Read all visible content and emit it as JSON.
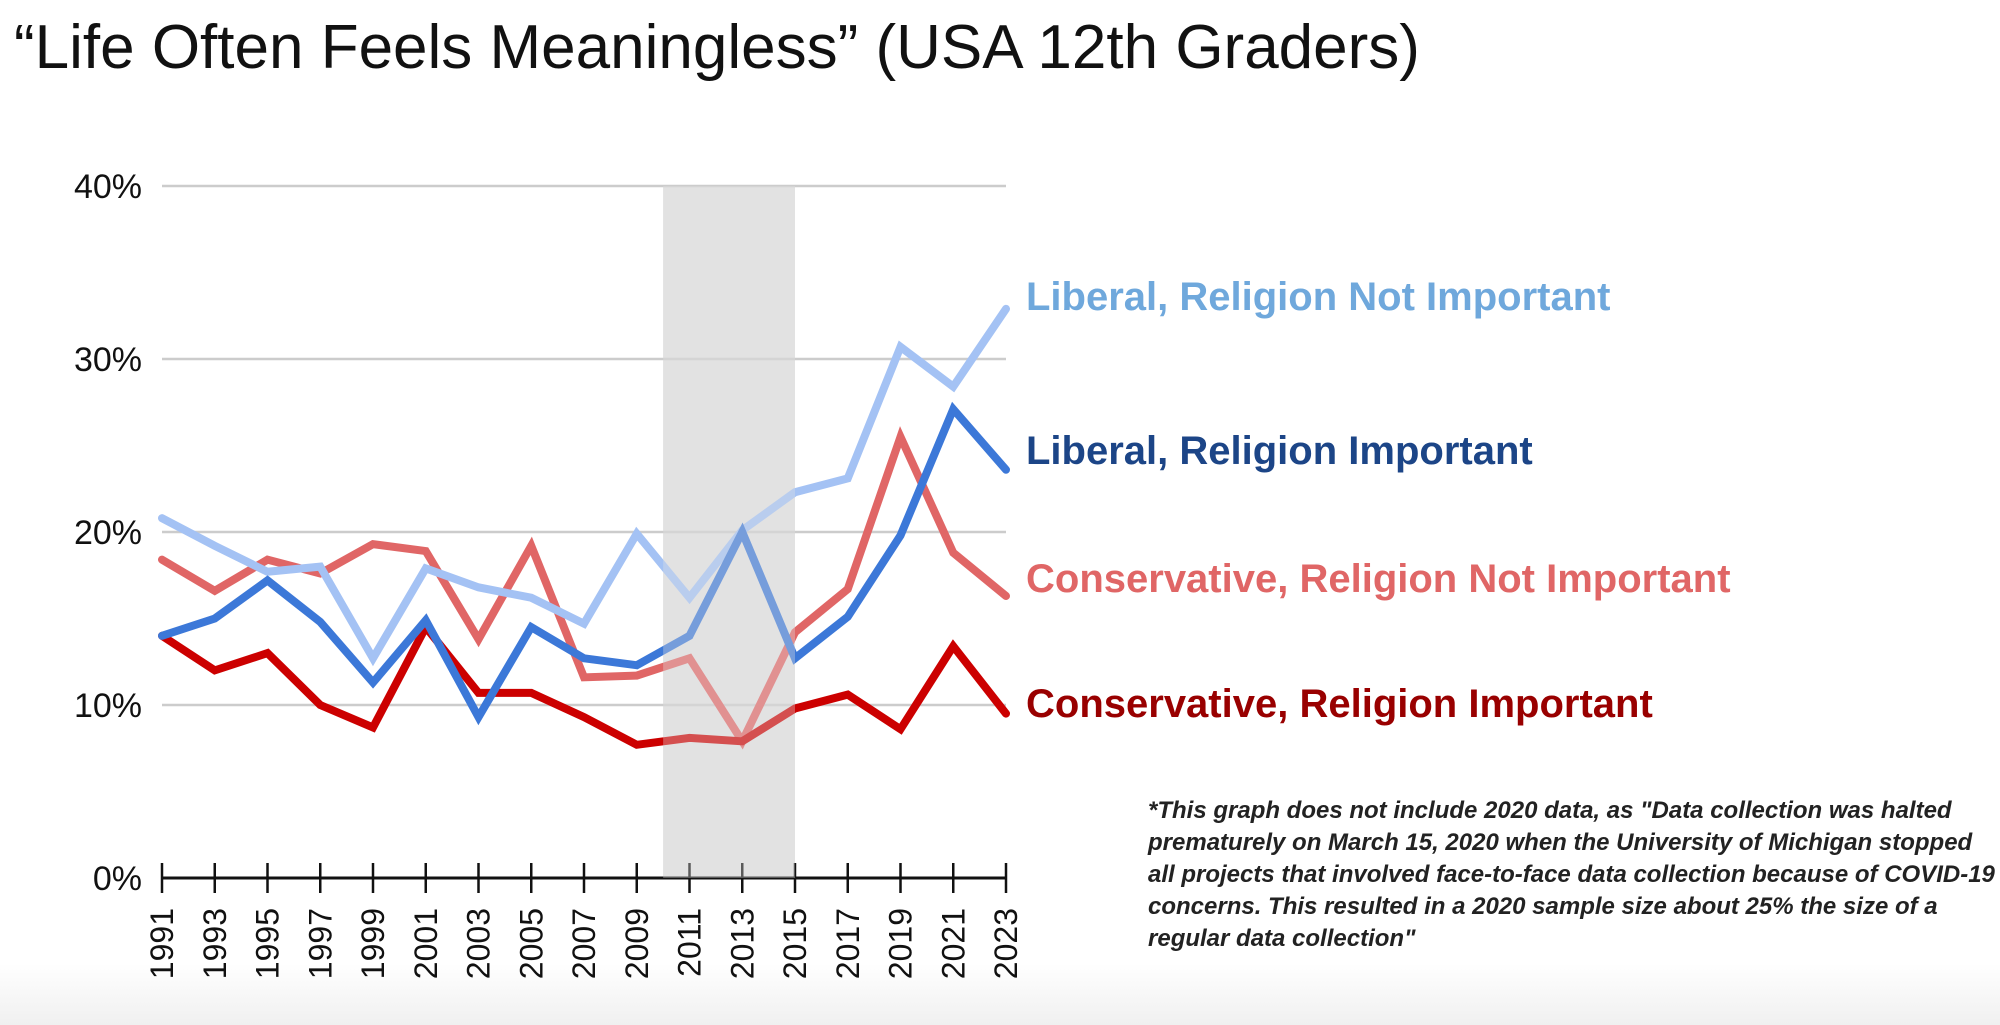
{
  "title": "“Life Often Feels Meaningless” (USA 12th Graders)",
  "footnote": "*This graph does not include 2020 data, as \"Data collection was halted prematurely on March 15, 2020 when the University of Michigan stopped all projects that involved face-to-face data collection because of COVID-19 concerns. This resulted in a 2020 sample size about 25% the size of a regular data collection\"",
  "chart_data": {
    "type": "line",
    "title": "“Life Often Feels Meaningless” (USA 12th Graders)",
    "xlabel": "",
    "ylabel": "",
    "x": [
      1991,
      1993,
      1995,
      1997,
      1999,
      2001,
      2003,
      2005,
      2007,
      2009,
      2011,
      2013,
      2015,
      2017,
      2019,
      2021,
      2023
    ],
    "x_tick_labels": [
      "1991",
      "1993",
      "1995",
      "1997",
      "1999",
      "2001",
      "2003",
      "2005",
      "2007",
      "2009",
      "2011",
      "2013",
      "2015",
      "2017",
      "2019",
      "2021",
      "2023"
    ],
    "ylim": [
      0,
      40
    ],
    "y_ticks": [
      0,
      10,
      20,
      30,
      40
    ],
    "y_tick_labels": [
      "0%",
      "10%",
      "20%",
      "30%",
      "40%"
    ],
    "grid": true,
    "legend": "direct labels at right end of lines",
    "shaded_region": {
      "x_start": 2010,
      "x_end": 2015,
      "color": "#e2e2e2"
    },
    "series": [
      {
        "name": "Liberal, Religion Not Important",
        "color": "#a4c2f4",
        "label_color": "#6fa8dc",
        "values": [
          20.8,
          19.2,
          17.7,
          18.0,
          12.7,
          17.9,
          16.8,
          16.2,
          14.7,
          19.9,
          16.2,
          20.1,
          22.3,
          23.1,
          30.7,
          28.4,
          32.9
        ]
      },
      {
        "name": "Liberal, Religion Important",
        "color": "#3c78d8",
        "label_color": "#1c4587",
        "values": [
          14.0,
          15.0,
          17.2,
          14.8,
          11.3,
          14.9,
          9.3,
          14.5,
          12.7,
          12.3,
          14.0,
          20.0,
          12.7,
          15.1,
          19.8,
          27.1,
          23.6
        ]
      },
      {
        "name": "Conservative, Religion Not Important",
        "color": "#e06666",
        "label_color": "#e06666",
        "values": [
          18.4,
          16.6,
          18.4,
          17.6,
          19.3,
          18.9,
          13.8,
          19.2,
          11.6,
          11.7,
          12.7,
          7.9,
          14.2,
          16.7,
          25.5,
          18.8,
          16.3
        ]
      },
      {
        "name": "Conservative, Religion Important",
        "color": "#cc0000",
        "label_color": "#990000",
        "values": [
          14.0,
          12.0,
          13.0,
          10.0,
          8.7,
          14.5,
          10.7,
          10.7,
          9.3,
          7.7,
          8.1,
          7.9,
          9.8,
          10.6,
          8.6,
          13.4,
          9.5
        ]
      }
    ]
  }
}
